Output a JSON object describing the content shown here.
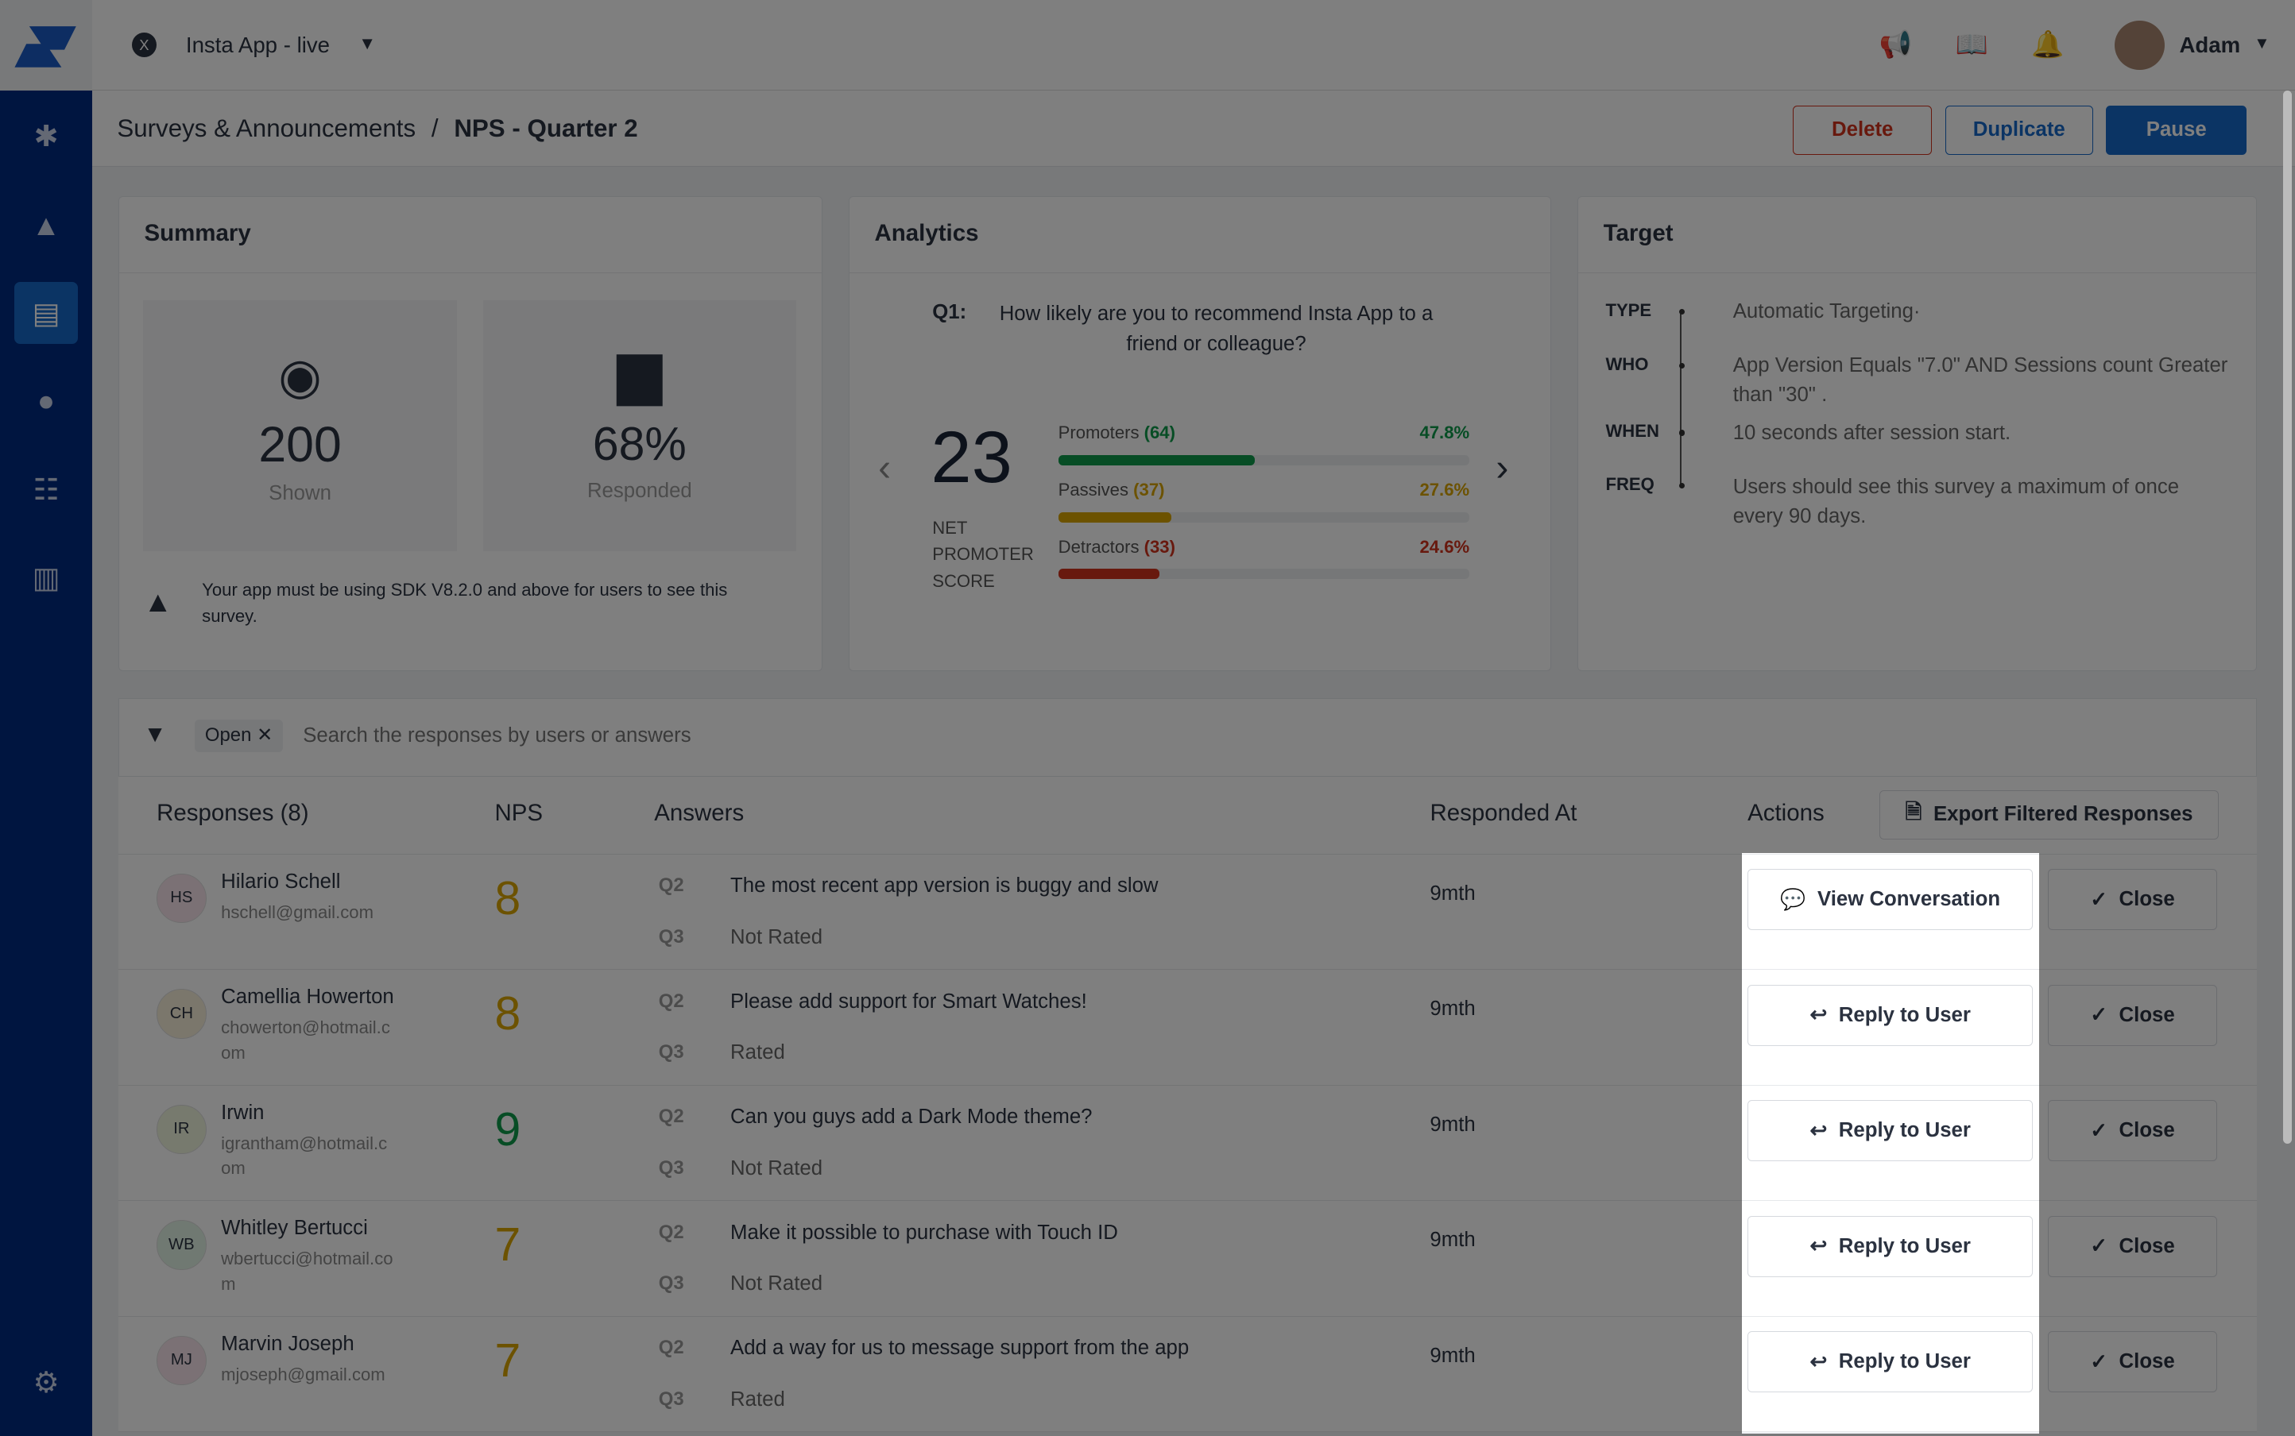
{
  "topbar": {
    "app_name": "Insta App - live",
    "user_name": "Adam"
  },
  "breadcrumb": {
    "parent": "Surveys & Announcements",
    "separator": "/",
    "current": "NPS - Quarter 2"
  },
  "header_buttons": {
    "delete": "Delete",
    "duplicate": "Duplicate",
    "pause": "Pause"
  },
  "summary": {
    "title": "Summary",
    "shown_value": "200",
    "shown_label": "Shown",
    "responded_value": "68%",
    "responded_label": "Responded",
    "warning": "Your app must be using SDK V8.2.0 and above for users to see this survey."
  },
  "analytics": {
    "title": "Analytics",
    "question_num": "Q1:",
    "question": "How likely are you to recommend Insta App to a friend or colleague?",
    "score": "23",
    "score_label": "NET PROMOTER SCORE",
    "groups": [
      {
        "label": "Promoters",
        "count": "(64)",
        "percent": "47.8%",
        "value": 47.8,
        "color": "#0f9a4a"
      },
      {
        "label": "Passives",
        "count": "(37)",
        "percent": "27.6%",
        "value": 27.6,
        "color": "#d9a400"
      },
      {
        "label": "Detractors",
        "count": "(33)",
        "percent": "24.6%",
        "value": 24.6,
        "color": "#d0321d"
      }
    ]
  },
  "target": {
    "title": "Target",
    "items": [
      {
        "key": "TYPE",
        "value": "Automatic Targeting·"
      },
      {
        "key": "WHO",
        "value": "App Version Equals \"7.0\" AND Sessions count Greater than \"30\" ."
      },
      {
        "key": "WHEN",
        "value": "10 seconds after session start."
      },
      {
        "key": "FREQ",
        "value": "Users should see this survey a maximum of once every 90 days."
      }
    ]
  },
  "filter": {
    "chip": "Open",
    "placeholder": "Search the responses by users or answers"
  },
  "table": {
    "headers": {
      "responses": "Responses (8)",
      "nps": "NPS",
      "answers": "Answers",
      "responded_at": "Responded At",
      "actions": "Actions"
    },
    "export": "Export Filtered Responses",
    "close": "Close",
    "rows": [
      {
        "initials": "HS",
        "name": "Hilario Schell",
        "email": "hschell@gmail.com",
        "nps": "8",
        "q2": "Q2",
        "a2": "The most recent app version is buggy and slow",
        "q3": "Q3",
        "a3": "Not Rated",
        "when": "9mth",
        "action": "View Conversation",
        "color": "#d9a400",
        "av": "#f7e3ea"
      },
      {
        "initials": "CH",
        "name": "Camellia Howerton",
        "email": "chowerton@hotmail.com",
        "nps": "8",
        "q2": "Q2",
        "a2": "Please add support for Smart Watches!",
        "q3": "Q3",
        "a3": "Rated",
        "when": "9mth",
        "action": "Reply to User",
        "color": "#d9a400",
        "av": "#f7efd9"
      },
      {
        "initials": "IR",
        "name": "Irwin",
        "email": "igrantham@hotmail.com",
        "nps": "9",
        "q2": "Q2",
        "a2": "Can you guys add a Dark Mode theme?",
        "q3": "Q3",
        "a3": "Not Rated",
        "when": "9mth",
        "action": "Reply to User",
        "color": "#0f9a4a",
        "av": "#eef4dc"
      },
      {
        "initials": "WB",
        "name": "Whitley Bertucci",
        "email": "wbertucci@hotmail.com",
        "nps": "7",
        "q2": "Q2",
        "a2": "Make it possible to purchase with Touch ID",
        "q3": "Q3",
        "a3": "Not Rated",
        "when": "9mth",
        "action": "Reply to User",
        "color": "#d9a400",
        "av": "#e0f2e4"
      },
      {
        "initials": "MJ",
        "name": "Marvin Joseph",
        "email": "mjoseph@gmail.com",
        "nps": "7",
        "q2": "Q2",
        "a2": "Add a way for us to message support from the app",
        "q3": "Q3",
        "a3": "Rated",
        "when": "9mth",
        "action": "Reply to User",
        "color": "#d9a400",
        "av": "#f7e3ea"
      }
    ]
  }
}
